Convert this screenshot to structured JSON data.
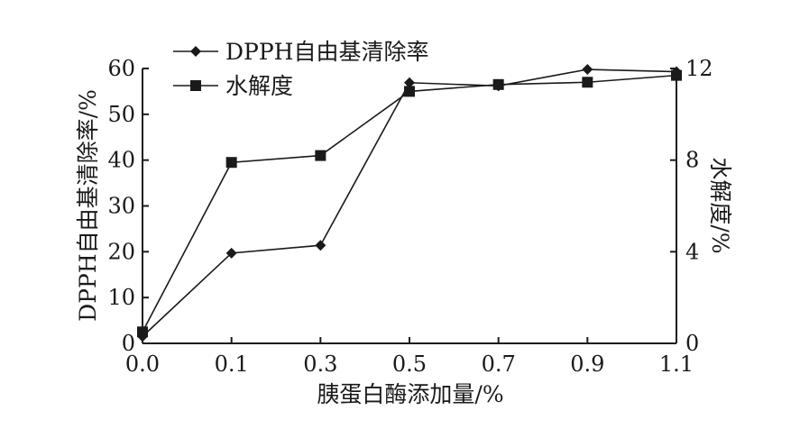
{
  "chart_data": {
    "type": "line",
    "xlabel": "胰蛋白酶添加量/%",
    "ylabel_left": "DPPH自由基清除率/%",
    "ylabel_right": "水解度/%",
    "x": [
      0.0,
      0.1,
      0.3,
      0.5,
      0.7,
      0.9,
      1.1
    ],
    "x_tick_labels": [
      "0.0",
      "0.1",
      "0.3",
      "0.5",
      "0.7",
      "0.9",
      "1.1"
    ],
    "ylim_left": [
      0,
      60
    ],
    "y_left_ticks": [
      0,
      10,
      20,
      30,
      40,
      50,
      60
    ],
    "ylim_right": [
      0,
      12
    ],
    "y_right_ticks": [
      0,
      4,
      8,
      12
    ],
    "series": [
      {
        "name": "DPPH自由基清除率",
        "marker": "diamond",
        "axis": "left",
        "values": [
          1.5,
          19.7,
          21.4,
          56.9,
          56.2,
          59.8,
          59.3
        ]
      },
      {
        "name": "水解度",
        "marker": "square",
        "axis": "right",
        "values": [
          0.5,
          7.9,
          8.2,
          11.0,
          11.3,
          11.4,
          11.7
        ]
      }
    ],
    "legend_position": "top-left",
    "grid": false
  }
}
